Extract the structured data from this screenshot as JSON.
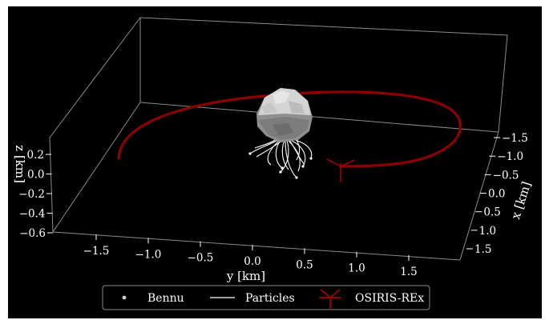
{
  "chart_data": {
    "type": "line",
    "projection": "3d",
    "background": "#000000",
    "axes": {
      "x": {
        "label": "x [km]",
        "ticks": [
          "−1.5",
          "−1.0",
          "−0.5",
          "0.0",
          "0.5",
          "1.0",
          "1.5"
        ],
        "values": [
          -1.5,
          -1.0,
          -0.5,
          0.0,
          0.5,
          1.0,
          1.5
        ]
      },
      "y": {
        "label": "y [km]",
        "ticks": [
          "−1.5",
          "−1.0",
          "−0.5",
          "0.0",
          "0.5",
          "1.0",
          "1.5"
        ],
        "values": [
          -1.5,
          -1.0,
          -0.5,
          0.0,
          0.5,
          1.0,
          1.5
        ]
      },
      "z": {
        "label": "z [km]",
        "ticks": [
          "0.2",
          "0.0",
          "−0.2",
          "−0.4",
          "−0.6"
        ],
        "values": [
          0.2,
          0.0,
          -0.2,
          -0.4,
          -0.6
        ]
      }
    },
    "series": [
      {
        "name": "Bennu",
        "kind": "body",
        "color": "#9a9a9a"
      },
      {
        "name": "Particles",
        "kind": "trajectories",
        "color": "#ffffff"
      },
      {
        "name": "OSIRIS-REx",
        "kind": "orbit",
        "color": "#8b0000"
      }
    ],
    "legend": {
      "position": "bottom-center",
      "items": [
        {
          "label": "Bennu",
          "marker": "dot",
          "color": "#cccccc"
        },
        {
          "label": "Particles",
          "marker": "line",
          "color": "#ffffff"
        },
        {
          "label": "OSIRIS-REx",
          "marker": "spacecraft",
          "color": "#a00000"
        }
      ]
    },
    "grid": false
  }
}
